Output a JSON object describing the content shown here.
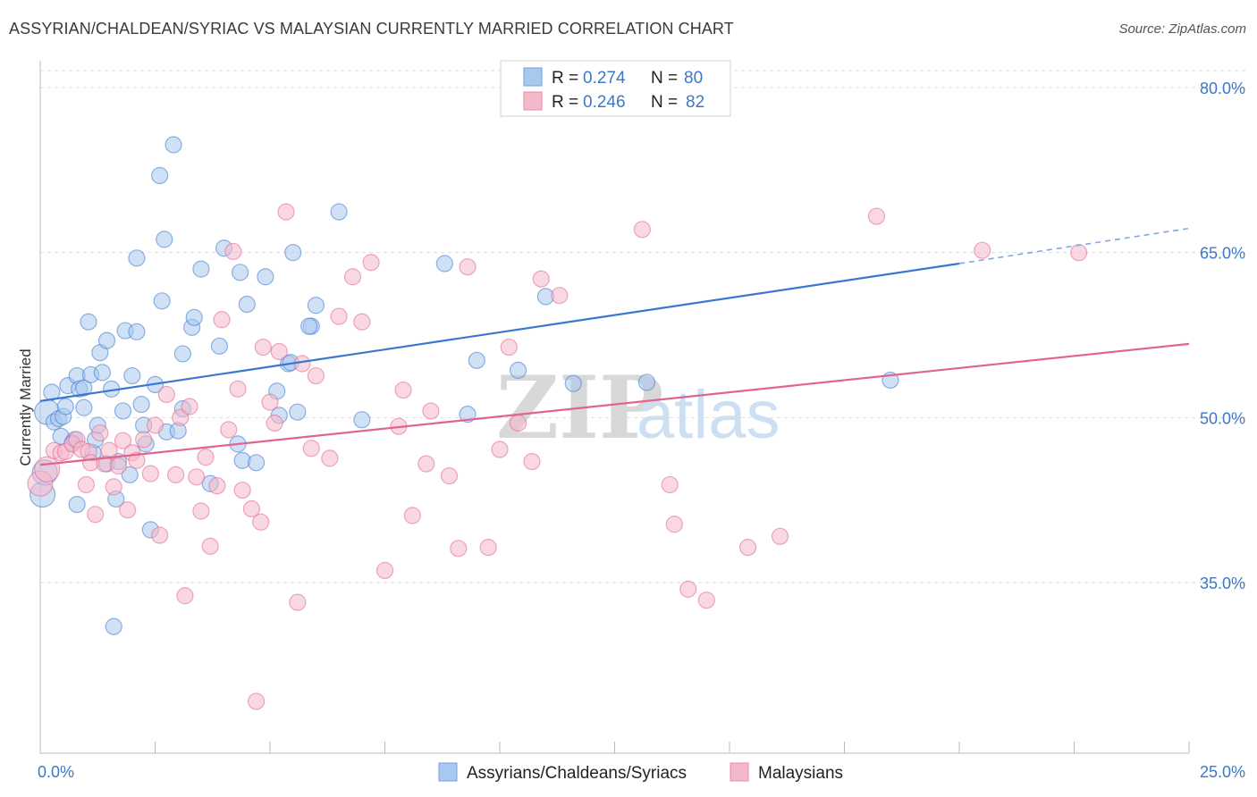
{
  "header": {
    "title": "ASSYRIAN/CHALDEAN/SYRIAC VS MALAYSIAN CURRENTLY MARRIED CORRELATION CHART",
    "source": "Source: ZipAtlas.com"
  },
  "watermark": {
    "zip": "ZIP",
    "atlas": "atlas"
  },
  "legend": {
    "rows": [
      {
        "r_label": "R =",
        "r_value": "0.274",
        "n_label": "N =",
        "n_value": "80",
        "color": "#a9c8ef"
      },
      {
        "r_label": "R =",
        "r_value": "0.246",
        "n_label": "N =",
        "n_value": "82",
        "color": "#f5b8cb"
      }
    ]
  },
  "bottom_legend": [
    {
      "label": "Assyrians/Chaldeans/Syriacs",
      "color": "#a9c8ef"
    },
    {
      "label": "Malaysians",
      "color": "#f5b8cb"
    }
  ],
  "chart_data": {
    "type": "scatter",
    "title": "ASSYRIAN/CHALDEAN/SYRIAC VS MALAYSIAN CURRENTLY MARRIED CORRELATION CHART",
    "xlabel": "",
    "ylabel": "Currently Married",
    "xlim": [
      0,
      25
    ],
    "ylim": [
      20,
      82
    ],
    "x_tick_labels": [
      "0.0%",
      "25.0%"
    ],
    "y_ticks": [
      35,
      50,
      65,
      80
    ],
    "y_tick_labels": [
      "35.0%",
      "50.0%",
      "65.0%",
      "80.0%"
    ],
    "grid": true,
    "series": [
      {
        "name": "Assyrians/Chaldeans/Syriacs",
        "color": "#3a78d0",
        "fill": "#a9c8ef",
        "r": 0.274,
        "n": 80,
        "trend": {
          "x0": 0,
          "y0": 51.5,
          "x1": 20,
          "y1": 64.0,
          "dash_to_x": 25,
          "dash_to_y": 67.2
        },
        "points": [
          [
            0.05,
            43.0
          ],
          [
            0.1,
            45.0
          ],
          [
            0.15,
            50.5
          ],
          [
            0.25,
            52.3
          ],
          [
            0.3,
            49.6
          ],
          [
            0.4,
            49.9
          ],
          [
            0.45,
            48.3
          ],
          [
            0.5,
            50.1
          ],
          [
            0.55,
            51.0
          ],
          [
            0.6,
            52.9
          ],
          [
            0.7,
            47.7
          ],
          [
            0.75,
            48.0
          ],
          [
            0.8,
            42.1
          ],
          [
            0.8,
            53.8
          ],
          [
            0.85,
            52.6
          ],
          [
            0.95,
            50.9
          ],
          [
            0.95,
            52.7
          ],
          [
            1.05,
            58.7
          ],
          [
            1.1,
            53.9
          ],
          [
            1.15,
            46.8
          ],
          [
            1.2,
            48.0
          ],
          [
            1.25,
            49.3
          ],
          [
            1.3,
            55.9
          ],
          [
            1.35,
            54.1
          ],
          [
            1.45,
            45.8
          ],
          [
            1.45,
            57.0
          ],
          [
            1.55,
            52.6
          ],
          [
            1.6,
            31.0
          ],
          [
            1.65,
            42.6
          ],
          [
            1.7,
            46.0
          ],
          [
            1.8,
            50.6
          ],
          [
            1.85,
            57.9
          ],
          [
            1.95,
            44.8
          ],
          [
            2.0,
            53.8
          ],
          [
            2.1,
            57.8
          ],
          [
            2.1,
            64.5
          ],
          [
            2.2,
            51.2
          ],
          [
            2.25,
            49.3
          ],
          [
            2.3,
            47.6
          ],
          [
            2.4,
            39.8
          ],
          [
            2.5,
            53.0
          ],
          [
            2.6,
            72.0
          ],
          [
            2.65,
            60.6
          ],
          [
            2.7,
            66.2
          ],
          [
            2.75,
            48.7
          ],
          [
            2.9,
            74.8
          ],
          [
            3.1,
            50.8
          ],
          [
            3.1,
            55.8
          ],
          [
            3.3,
            58.2
          ],
          [
            3.35,
            59.1
          ],
          [
            3.5,
            63.5
          ],
          [
            3.7,
            44.0
          ],
          [
            3.9,
            56.5
          ],
          [
            4.0,
            65.4
          ],
          [
            4.3,
            47.6
          ],
          [
            4.35,
            63.2
          ],
          [
            4.4,
            46.1
          ],
          [
            4.5,
            60.3
          ],
          [
            4.7,
            45.9
          ],
          [
            4.9,
            62.8
          ],
          [
            5.15,
            52.4
          ],
          [
            5.2,
            50.2
          ],
          [
            5.4,
            54.9
          ],
          [
            5.5,
            65.0
          ],
          [
            5.6,
            50.5
          ],
          [
            5.9,
            58.3
          ],
          [
            6.0,
            60.2
          ],
          [
            6.5,
            68.7
          ],
          [
            7.0,
            49.8
          ],
          [
            8.8,
            64.0
          ],
          [
            9.3,
            50.3
          ],
          [
            9.5,
            55.2
          ],
          [
            10.4,
            54.3
          ],
          [
            11.0,
            61.0
          ],
          [
            11.6,
            53.1
          ],
          [
            13.2,
            53.2
          ],
          [
            18.5,
            53.4
          ],
          [
            5.45,
            55.0
          ],
          [
            5.85,
            58.3
          ],
          [
            3.0,
            48.8
          ]
        ]
      },
      {
        "name": "Malaysians",
        "color": "#e0648e",
        "fill": "#f5b8cb",
        "r": 0.246,
        "n": 82,
        "trend": {
          "x0": 0,
          "y0": 45.7,
          "x1": 25,
          "y1": 56.7
        },
        "points": [
          [
            0.0,
            44.0
          ],
          [
            0.15,
            45.3
          ],
          [
            0.3,
            47.0
          ],
          [
            0.45,
            46.8
          ],
          [
            0.55,
            46.9
          ],
          [
            0.7,
            47.6
          ],
          [
            0.8,
            48.0
          ],
          [
            0.9,
            47.1
          ],
          [
            1.0,
            43.9
          ],
          [
            1.05,
            46.9
          ],
          [
            1.1,
            45.9
          ],
          [
            1.2,
            41.2
          ],
          [
            1.3,
            48.6
          ],
          [
            1.4,
            45.8
          ],
          [
            1.5,
            47.0
          ],
          [
            1.6,
            43.7
          ],
          [
            1.7,
            45.6
          ],
          [
            1.8,
            47.9
          ],
          [
            1.9,
            41.6
          ],
          [
            2.0,
            46.8
          ],
          [
            2.1,
            46.1
          ],
          [
            2.25,
            48.0
          ],
          [
            2.4,
            44.9
          ],
          [
            2.5,
            49.3
          ],
          [
            2.6,
            39.3
          ],
          [
            2.75,
            52.1
          ],
          [
            2.95,
            44.8
          ],
          [
            3.05,
            50.0
          ],
          [
            3.15,
            33.8
          ],
          [
            3.25,
            51.0
          ],
          [
            3.4,
            44.6
          ],
          [
            3.5,
            41.5
          ],
          [
            3.6,
            46.4
          ],
          [
            3.7,
            38.3
          ],
          [
            3.85,
            43.8
          ],
          [
            3.95,
            58.9
          ],
          [
            4.1,
            48.9
          ],
          [
            4.2,
            65.1
          ],
          [
            4.3,
            52.6
          ],
          [
            4.4,
            43.4
          ],
          [
            4.6,
            41.7
          ],
          [
            4.8,
            40.5
          ],
          [
            4.85,
            56.4
          ],
          [
            5.0,
            51.4
          ],
          [
            5.1,
            49.5
          ],
          [
            5.2,
            56.0
          ],
          [
            5.35,
            68.7
          ],
          [
            5.6,
            33.2
          ],
          [
            5.7,
            54.9
          ],
          [
            5.9,
            47.2
          ],
          [
            6.0,
            53.8
          ],
          [
            6.3,
            46.3
          ],
          [
            6.5,
            59.2
          ],
          [
            6.8,
            62.8
          ],
          [
            7.0,
            58.7
          ],
          [
            7.2,
            64.1
          ],
          [
            7.5,
            36.1
          ],
          [
            7.8,
            49.2
          ],
          [
            7.9,
            52.5
          ],
          [
            8.1,
            41.1
          ],
          [
            8.4,
            45.8
          ],
          [
            8.5,
            50.6
          ],
          [
            8.9,
            44.7
          ],
          [
            9.1,
            38.1
          ],
          [
            9.3,
            63.7
          ],
          [
            9.75,
            38.2
          ],
          [
            10.0,
            47.1
          ],
          [
            10.2,
            56.4
          ],
          [
            10.4,
            49.5
          ],
          [
            10.7,
            46.0
          ],
          [
            10.9,
            62.6
          ],
          [
            11.3,
            61.1
          ],
          [
            13.1,
            67.1
          ],
          [
            13.7,
            43.9
          ],
          [
            13.8,
            40.3
          ],
          [
            14.1,
            34.4
          ],
          [
            14.5,
            33.4
          ],
          [
            15.4,
            38.2
          ],
          [
            16.1,
            39.2
          ],
          [
            18.2,
            68.3
          ],
          [
            20.5,
            65.2
          ],
          [
            22.6,
            65.0
          ]
        ]
      }
    ],
    "extra_points_malaysians": [
      [
        4.7,
        24.2
      ]
    ]
  }
}
